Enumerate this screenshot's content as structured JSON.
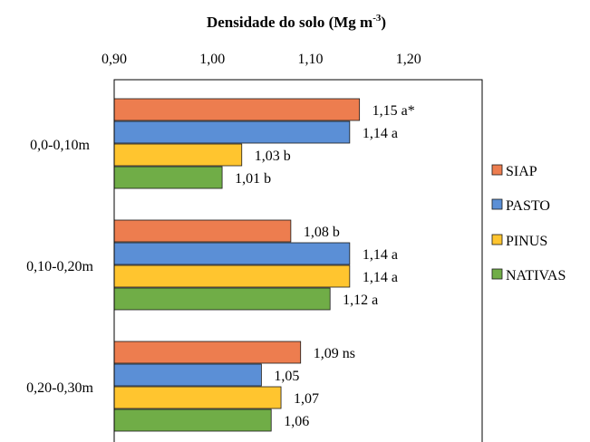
{
  "chart_data": {
    "type": "bar",
    "orientation": "horizontal",
    "title": "Densidade do solo (Mg m",
    "title_sup": "-3",
    "title_close": ")",
    "x_axis_position": "top",
    "xlim": [
      0.9,
      1.275
    ],
    "ticks": [
      0.9,
      1.0,
      1.1,
      1.2
    ],
    "tick_labels": [
      "0,90",
      "1,00",
      "1,10",
      "1,20"
    ],
    "categories": [
      "0,0-0,10m",
      "0,10-0,20m",
      "0,20-0,30m"
    ],
    "series": [
      {
        "name": "SIAP",
        "color": "#ED7D4F",
        "values": [
          1.15,
          1.08,
          1.09
        ],
        "labels": [
          "1,15 a*",
          "1,08 b",
          "1,09 ns"
        ]
      },
      {
        "name": "PASTO",
        "color": "#5B8FD6",
        "values": [
          1.14,
          1.14,
          1.05
        ],
        "labels": [
          "1,14 a",
          "1,14 a",
          "1,05"
        ]
      },
      {
        "name": "PINUS",
        "color": "#FFC52F",
        "values": [
          1.03,
          1.14,
          1.07
        ],
        "labels": [
          "1,03 b",
          "1,14 a",
          "1,07"
        ]
      },
      {
        "name": "NATIVAS",
        "color": "#70AD47",
        "values": [
          1.01,
          1.12,
          1.06
        ],
        "labels": [
          "1,01 b",
          "1,12 a",
          "1,06"
        ]
      }
    ],
    "legend_position": "right",
    "grid": false
  }
}
